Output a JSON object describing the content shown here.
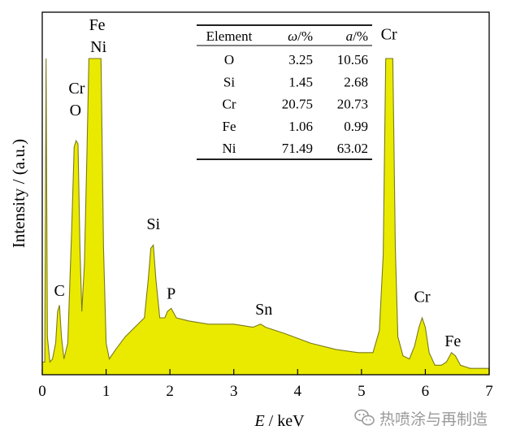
{
  "chart_data": {
    "type": "area",
    "xlabel_italic": "E",
    "xlabel_rest": " / keV",
    "ylabel": "Intensity / (a.u.)",
    "xlim": [
      0,
      7
    ],
    "x_ticks": [
      0,
      1,
      2,
      3,
      4,
      5,
      6,
      7
    ],
    "fill_color": "#eaea00",
    "edge_color": "#7a7a18",
    "spectrum": [
      [
        0.0,
        0.04
      ],
      [
        0.04,
        0.04
      ],
      [
        0.06,
        1.0
      ],
      [
        0.08,
        0.12
      ],
      [
        0.12,
        0.04
      ],
      [
        0.16,
        0.05
      ],
      [
        0.21,
        0.1
      ],
      [
        0.24,
        0.2
      ],
      [
        0.27,
        0.22
      ],
      [
        0.3,
        0.12
      ],
      [
        0.34,
        0.05
      ],
      [
        0.4,
        0.1
      ],
      [
        0.46,
        0.45
      ],
      [
        0.5,
        0.72
      ],
      [
        0.53,
        0.74
      ],
      [
        0.56,
        0.73
      ],
      [
        0.59,
        0.4
      ],
      [
        0.62,
        0.2
      ],
      [
        0.66,
        0.35
      ],
      [
        0.7,
        0.7
      ],
      [
        0.73,
        1.0
      ],
      [
        0.92,
        1.0
      ],
      [
        0.96,
        0.4
      ],
      [
        1.0,
        0.1
      ],
      [
        1.05,
        0.05
      ],
      [
        1.15,
        0.08
      ],
      [
        1.3,
        0.12
      ],
      [
        1.45,
        0.15
      ],
      [
        1.6,
        0.18
      ],
      [
        1.66,
        0.3
      ],
      [
        1.7,
        0.4
      ],
      [
        1.74,
        0.41
      ],
      [
        1.78,
        0.3
      ],
      [
        1.84,
        0.18
      ],
      [
        1.92,
        0.18
      ],
      [
        1.96,
        0.2
      ],
      [
        2.02,
        0.21
      ],
      [
        2.1,
        0.18
      ],
      [
        2.3,
        0.17
      ],
      [
        2.6,
        0.16
      ],
      [
        3.0,
        0.16
      ],
      [
        3.3,
        0.15
      ],
      [
        3.42,
        0.16
      ],
      [
        3.5,
        0.15
      ],
      [
        3.8,
        0.13
      ],
      [
        4.2,
        0.1
      ],
      [
        4.6,
        0.08
      ],
      [
        4.95,
        0.07
      ],
      [
        5.18,
        0.07
      ],
      [
        5.28,
        0.14
      ],
      [
        5.34,
        0.38
      ],
      [
        5.38,
        1.0
      ],
      [
        5.49,
        1.0
      ],
      [
        5.53,
        0.4
      ],
      [
        5.57,
        0.12
      ],
      [
        5.65,
        0.06
      ],
      [
        5.75,
        0.05
      ],
      [
        5.83,
        0.09
      ],
      [
        5.9,
        0.15
      ],
      [
        5.95,
        0.18
      ],
      [
        6.0,
        0.15
      ],
      [
        6.06,
        0.07
      ],
      [
        6.15,
        0.03
      ],
      [
        6.25,
        0.03
      ],
      [
        6.33,
        0.04
      ],
      [
        6.41,
        0.07
      ],
      [
        6.47,
        0.06
      ],
      [
        6.55,
        0.03
      ],
      [
        6.7,
        0.02
      ],
      [
        6.85,
        0.02
      ],
      [
        7.0,
        0.02
      ]
    ],
    "peak_labels": [
      {
        "text": "Fe",
        "x": 0.86,
        "y": 1.09
      },
      {
        "text": "Ni",
        "x": 0.88,
        "y": 1.02
      },
      {
        "text": "Cr",
        "x": 0.54,
        "y": 0.89
      },
      {
        "text": "O",
        "x": 0.52,
        "y": 0.82
      },
      {
        "text": "C",
        "x": 0.27,
        "y": 0.25
      },
      {
        "text": "Si",
        "x": 1.74,
        "y": 0.46
      },
      {
        "text": "P",
        "x": 2.02,
        "y": 0.24
      },
      {
        "text": "Sn",
        "x": 3.47,
        "y": 0.19
      },
      {
        "text": "Cr",
        "x": 5.43,
        "y": 1.06
      },
      {
        "text": "Cr",
        "x": 5.95,
        "y": 0.23
      },
      {
        "text": "Fe",
        "x": 6.43,
        "y": 0.09
      }
    ],
    "table": {
      "headers": [
        "Element",
        "ω",
        "a"
      ],
      "header_units": [
        "",
        "/%",
        "/%"
      ],
      "rows": [
        [
          "O",
          "3.25",
          "10.56"
        ],
        [
          "Si",
          "1.45",
          "2.68"
        ],
        [
          "Cr",
          "20.75",
          "20.73"
        ],
        [
          "Fe",
          "1.06",
          "0.99"
        ],
        [
          "Ni",
          "71.49",
          "63.02"
        ]
      ]
    }
  },
  "watermark": {
    "text": "热喷涂与再制造",
    "icon": "wechat-icon",
    "color": "#9a9a9a"
  }
}
